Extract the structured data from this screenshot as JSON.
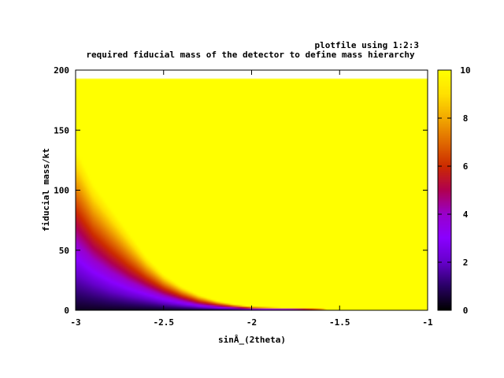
{
  "chart_data": {
    "type": "heatmap",
    "title": "required fiducial mass of the detector to define mass hierarchy",
    "key_label": "plotfile using 1:2:3",
    "xlabel": "sinÂ_(2theta)",
    "ylabel": "fiducial mass/kt",
    "xlim": [
      -3,
      -1
    ],
    "ylim": [
      0,
      200
    ],
    "data_ylim": [
      0,
      193
    ],
    "x_ticks": [
      -3,
      -2.5,
      -2,
      -1.5,
      -1
    ],
    "x_tick_labels": [
      "-3",
      "-2.5",
      "-2",
      "-1.5",
      "-1"
    ],
    "y_ticks": [
      0,
      50,
      100,
      150,
      200
    ],
    "y_tick_labels": [
      "0",
      "50",
      "100",
      "150",
      "200"
    ],
    "colorbar": {
      "range": [
        0,
        10
      ],
      "ticks": [
        0,
        2,
        4,
        6,
        8,
        10
      ],
      "tick_labels": [
        "0",
        "2",
        "4",
        "6",
        "8",
        "10"
      ],
      "palette": [
        "#000000",
        "#2a0066",
        "#6600cc",
        "#8a00ff",
        "#9900cc",
        "#b00050",
        "#cc2a00",
        "#e06a00",
        "#f2a800",
        "#ffe000",
        "#ffff00"
      ]
    },
    "frontier_x": [
      -3.0,
      -2.9,
      -2.8,
      -2.7,
      -2.6,
      -2.5,
      -2.4,
      -2.3,
      -2.2,
      -2.1,
      -2.0,
      -1.9,
      -1.8,
      -1.7,
      -1.6,
      -1.5
    ],
    "frontier_y_value10": [
      135,
      105,
      85,
      65,
      45,
      30,
      20,
      13,
      8,
      5,
      3,
      2.5,
      2,
      1.5,
      1,
      0
    ],
    "frontier_y_value5": [
      70,
      52,
      40,
      30,
      22,
      15,
      10,
      6,
      4,
      2.5,
      1.5,
      1.2,
      1,
      0.7,
      0.4,
      0
    ],
    "frontier_y_value2": [
      30,
      22,
      16,
      12,
      9,
      6,
      4,
      2.5,
      1.5,
      1,
      0.6,
      0.4,
      0.3,
      0.2,
      0.1,
      0
    ]
  }
}
